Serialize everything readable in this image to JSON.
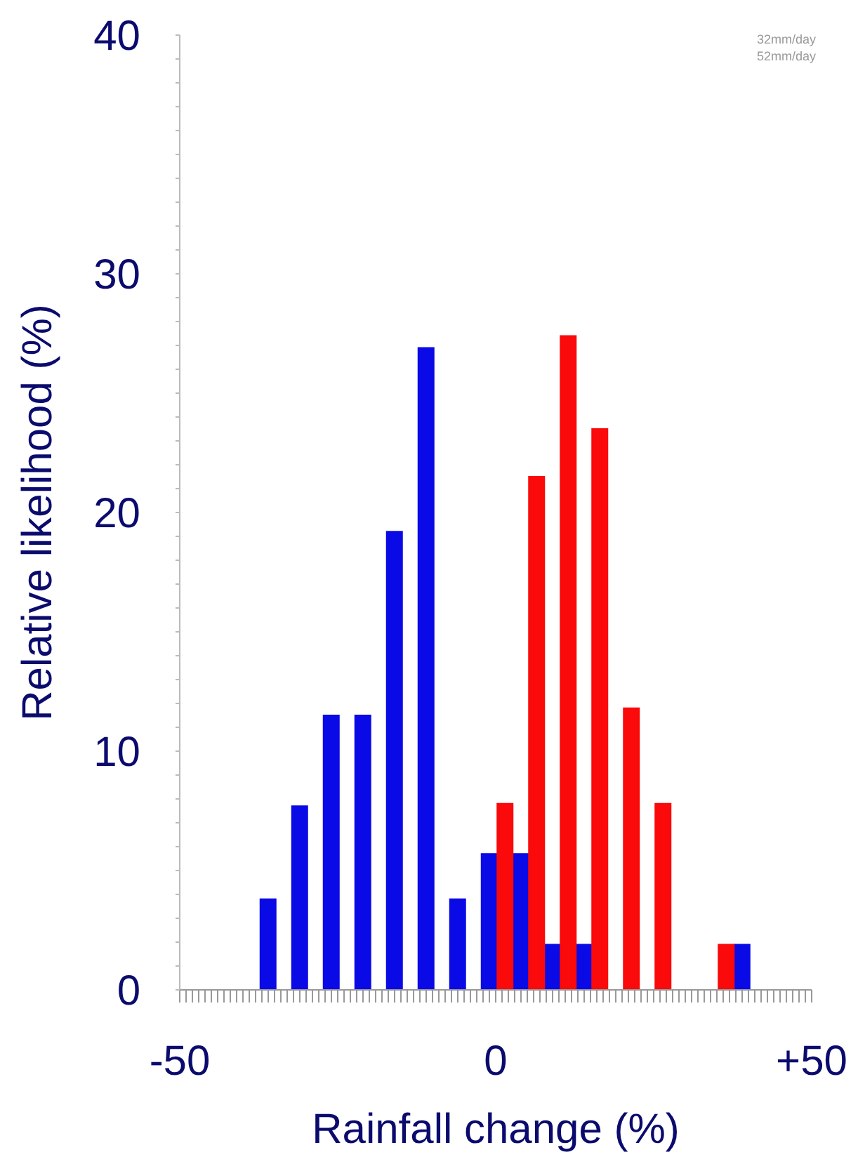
{
  "chart_data": {
    "type": "bar",
    "xlabel": "Rainfall change (%)",
    "ylabel": "Relative likelihood (%)",
    "annotations": [
      "32mm/day",
      "52mm/day"
    ],
    "xlim": [
      -50,
      50
    ],
    "xticks": [
      {
        "value": -50,
        "label": "-50"
      },
      {
        "value": -49,
        "label": null
      },
      {
        "value": -48,
        "label": null
      },
      {
        "value": -47,
        "label": null
      },
      {
        "value": -46,
        "label": null
      },
      {
        "value": -45,
        "label": null
      },
      {
        "value": -44,
        "label": null
      },
      {
        "value": -43,
        "label": null
      },
      {
        "value": -42,
        "label": null
      },
      {
        "value": -41,
        "label": null
      },
      {
        "value": -40,
        "label": null
      },
      {
        "value": -39,
        "label": null
      },
      {
        "value": -38,
        "label": null
      },
      {
        "value": -37,
        "label": null
      },
      {
        "value": -36,
        "label": null
      },
      {
        "value": -35,
        "label": null
      },
      {
        "value": -34,
        "label": null
      },
      {
        "value": -33,
        "label": null
      },
      {
        "value": -32,
        "label": null
      },
      {
        "value": -31,
        "label": null
      },
      {
        "value": -30,
        "label": null
      },
      {
        "value": -29,
        "label": null
      },
      {
        "value": -28,
        "label": null
      },
      {
        "value": -27,
        "label": null
      },
      {
        "value": -26,
        "label": null
      },
      {
        "value": -25,
        "label": null
      },
      {
        "value": -24,
        "label": null
      },
      {
        "value": -23,
        "label": null
      },
      {
        "value": -22,
        "label": null
      },
      {
        "value": -21,
        "label": null
      },
      {
        "value": -20,
        "label": null
      },
      {
        "value": -19,
        "label": null
      },
      {
        "value": -18,
        "label": null
      },
      {
        "value": -17,
        "label": null
      },
      {
        "value": -16,
        "label": null
      },
      {
        "value": -15,
        "label": null
      },
      {
        "value": -14,
        "label": null
      },
      {
        "value": -13,
        "label": null
      },
      {
        "value": -12,
        "label": null
      },
      {
        "value": -11,
        "label": null
      },
      {
        "value": -10,
        "label": null
      },
      {
        "value": -9,
        "label": null
      },
      {
        "value": -8,
        "label": null
      },
      {
        "value": -7,
        "label": null
      },
      {
        "value": -6,
        "label": null
      },
      {
        "value": -5,
        "label": null
      },
      {
        "value": -4,
        "label": null
      },
      {
        "value": -3,
        "label": null
      },
      {
        "value": -2,
        "label": null
      },
      {
        "value": -1,
        "label": null
      },
      {
        "value": 0,
        "label": "0"
      },
      {
        "value": 1,
        "label": null
      },
      {
        "value": 2,
        "label": null
      },
      {
        "value": 3,
        "label": null
      },
      {
        "value": 4,
        "label": null
      },
      {
        "value": 5,
        "label": null
      },
      {
        "value": 6,
        "label": null
      },
      {
        "value": 7,
        "label": null
      },
      {
        "value": 8,
        "label": null
      },
      {
        "value": 9,
        "label": null
      },
      {
        "value": 10,
        "label": null
      },
      {
        "value": 11,
        "label": null
      },
      {
        "value": 12,
        "label": null
      },
      {
        "value": 13,
        "label": null
      },
      {
        "value": 14,
        "label": null
      },
      {
        "value": 15,
        "label": null
      },
      {
        "value": 16,
        "label": null
      },
      {
        "value": 17,
        "label": null
      },
      {
        "value": 18,
        "label": null
      },
      {
        "value": 19,
        "label": null
      },
      {
        "value": 20,
        "label": null
      },
      {
        "value": 21,
        "label": null
      },
      {
        "value": 22,
        "label": null
      },
      {
        "value": 23,
        "label": null
      },
      {
        "value": 24,
        "label": null
      },
      {
        "value": 25,
        "label": null
      },
      {
        "value": 26,
        "label": null
      },
      {
        "value": 27,
        "label": null
      },
      {
        "value": 28,
        "label": null
      },
      {
        "value": 29,
        "label": null
      },
      {
        "value": 30,
        "label": null
      },
      {
        "value": 31,
        "label": null
      },
      {
        "value": 32,
        "label": null
      },
      {
        "value": 33,
        "label": null
      },
      {
        "value": 34,
        "label": null
      },
      {
        "value": 35,
        "label": null
      },
      {
        "value": 36,
        "label": null
      },
      {
        "value": 37,
        "label": null
      },
      {
        "value": 38,
        "label": null
      },
      {
        "value": 39,
        "label": null
      },
      {
        "value": 40,
        "label": null
      },
      {
        "value": 41,
        "label": null
      },
      {
        "value": 42,
        "label": null
      },
      {
        "value": 43,
        "label": null
      },
      {
        "value": 44,
        "label": null
      },
      {
        "value": 45,
        "label": null
      },
      {
        "value": 46,
        "label": null
      },
      {
        "value": 47,
        "label": null
      },
      {
        "value": 48,
        "label": null
      },
      {
        "value": 49,
        "label": null
      },
      {
        "value": 50,
        "label": "+50"
      }
    ],
    "ylim": [
      0,
      40
    ],
    "yticks": [
      0,
      {
        "value": 1,
        "label": null
      },
      {
        "value": 2,
        "label": null
      },
      {
        "value": 3,
        "label": null
      },
      {
        "value": 4,
        "label": null
      },
      {
        "value": 5,
        "label": null
      },
      {
        "value": 6,
        "label": null
      },
      {
        "value": 7,
        "label": null
      },
      {
        "value": 8,
        "label": null
      },
      {
        "value": 9,
        "label": null
      },
      10,
      {
        "value": 11,
        "label": null
      },
      {
        "value": 12,
        "label": null
      },
      {
        "value": 13,
        "label": null
      },
      {
        "value": 14,
        "label": null
      },
      {
        "value": 15,
        "label": null
      },
      {
        "value": 16,
        "label": null
      },
      {
        "value": 17,
        "label": null
      },
      {
        "value": 18,
        "label": null
      },
      {
        "value": 19,
        "label": null
      },
      20,
      {
        "value": 21,
        "label": null
      },
      {
        "value": 22,
        "label": null
      },
      {
        "value": 23,
        "label": null
      },
      {
        "value": 24,
        "label": null
      },
      {
        "value": 25,
        "label": null
      },
      {
        "value": 26,
        "label": null
      },
      {
        "value": 27,
        "label": null
      },
      {
        "value": 28,
        "label": null
      },
      {
        "value": 29,
        "label": null
      },
      30,
      {
        "value": 31,
        "label": null
      },
      {
        "value": 32,
        "label": null
      },
      {
        "value": 33,
        "label": null
      },
      {
        "value": 34,
        "label": null
      },
      {
        "value": 35,
        "label": null
      },
      {
        "value": 36,
        "label": null
      },
      {
        "value": 37,
        "label": null
      },
      {
        "value": 38,
        "label": null
      },
      {
        "value": 39,
        "label": null
      },
      40
    ],
    "grid": false,
    "legend": false,
    "series": [
      {
        "color": "#0a0ae6",
        "x": [
          -36,
          -31,
          -26,
          -21,
          -16,
          -11,
          -6,
          -1,
          4,
          9,
          14,
          39
        ],
        "values": [
          3.8,
          7.7,
          11.5,
          11.5,
          19.2,
          26.9,
          3.8,
          5.7,
          5.7,
          1.9,
          1.9,
          1.9
        ]
      },
      {
        "color": "#fa0a0a",
        "x": [
          1.5,
          6.5,
          11.5,
          16.5,
          21.5,
          26.5,
          36.5
        ],
        "values": [
          7.8,
          21.5,
          27.4,
          23.5,
          11.8,
          7.8,
          1.9
        ]
      }
    ]
  }
}
